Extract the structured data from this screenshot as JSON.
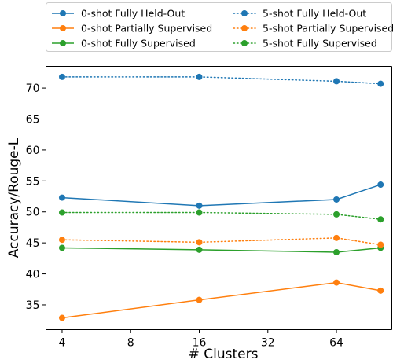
{
  "chart_data": {
    "type": "line",
    "title": "",
    "xlabel": "# Clusters",
    "ylabel": "Accuracy/Rouge-L",
    "x_scale": "log2",
    "x": [
      4,
      16,
      64,
      100
    ],
    "xticks": [
      4,
      8,
      16,
      32,
      64
    ],
    "xtick_labels": [
      "4",
      "8",
      "16",
      "32",
      "64"
    ],
    "xlim": [
      3.4,
      112
    ],
    "ylim": [
      31,
      73.5
    ],
    "yticks": [
      35,
      40,
      45,
      50,
      55,
      60,
      65,
      70
    ],
    "ytick_labels": [
      "35",
      "40",
      "45",
      "50",
      "55",
      "60",
      "65",
      "70"
    ],
    "grid": false,
    "legend_position": "top, outside, two columns",
    "series": [
      {
        "name": "0-shot Fully Held-Out",
        "color": "#1f77b4",
        "linestyle": "solid",
        "values": [
          52.3,
          51.0,
          52.0,
          54.4
        ]
      },
      {
        "name": "0-shot Partially Supervised",
        "color": "#ff7f0e",
        "linestyle": "solid",
        "values": [
          32.9,
          35.8,
          38.6,
          37.3
        ]
      },
      {
        "name": "0-shot Fully Supervised",
        "color": "#2ca02c",
        "linestyle": "solid",
        "values": [
          44.2,
          43.9,
          43.5,
          44.2
        ]
      },
      {
        "name": "5-shot Fully Held-Out",
        "color": "#1f77b4",
        "linestyle": "dotted",
        "values": [
          71.8,
          71.8,
          71.1,
          70.7
        ]
      },
      {
        "name": "5-shot Partially Supervised",
        "color": "#ff7f0e",
        "linestyle": "dotted",
        "values": [
          45.5,
          45.1,
          45.8,
          44.7
        ]
      },
      {
        "name": "5-shot Fully Supervised",
        "color": "#2ca02c",
        "linestyle": "dotted",
        "values": [
          49.9,
          49.9,
          49.6,
          48.8
        ]
      }
    ]
  }
}
